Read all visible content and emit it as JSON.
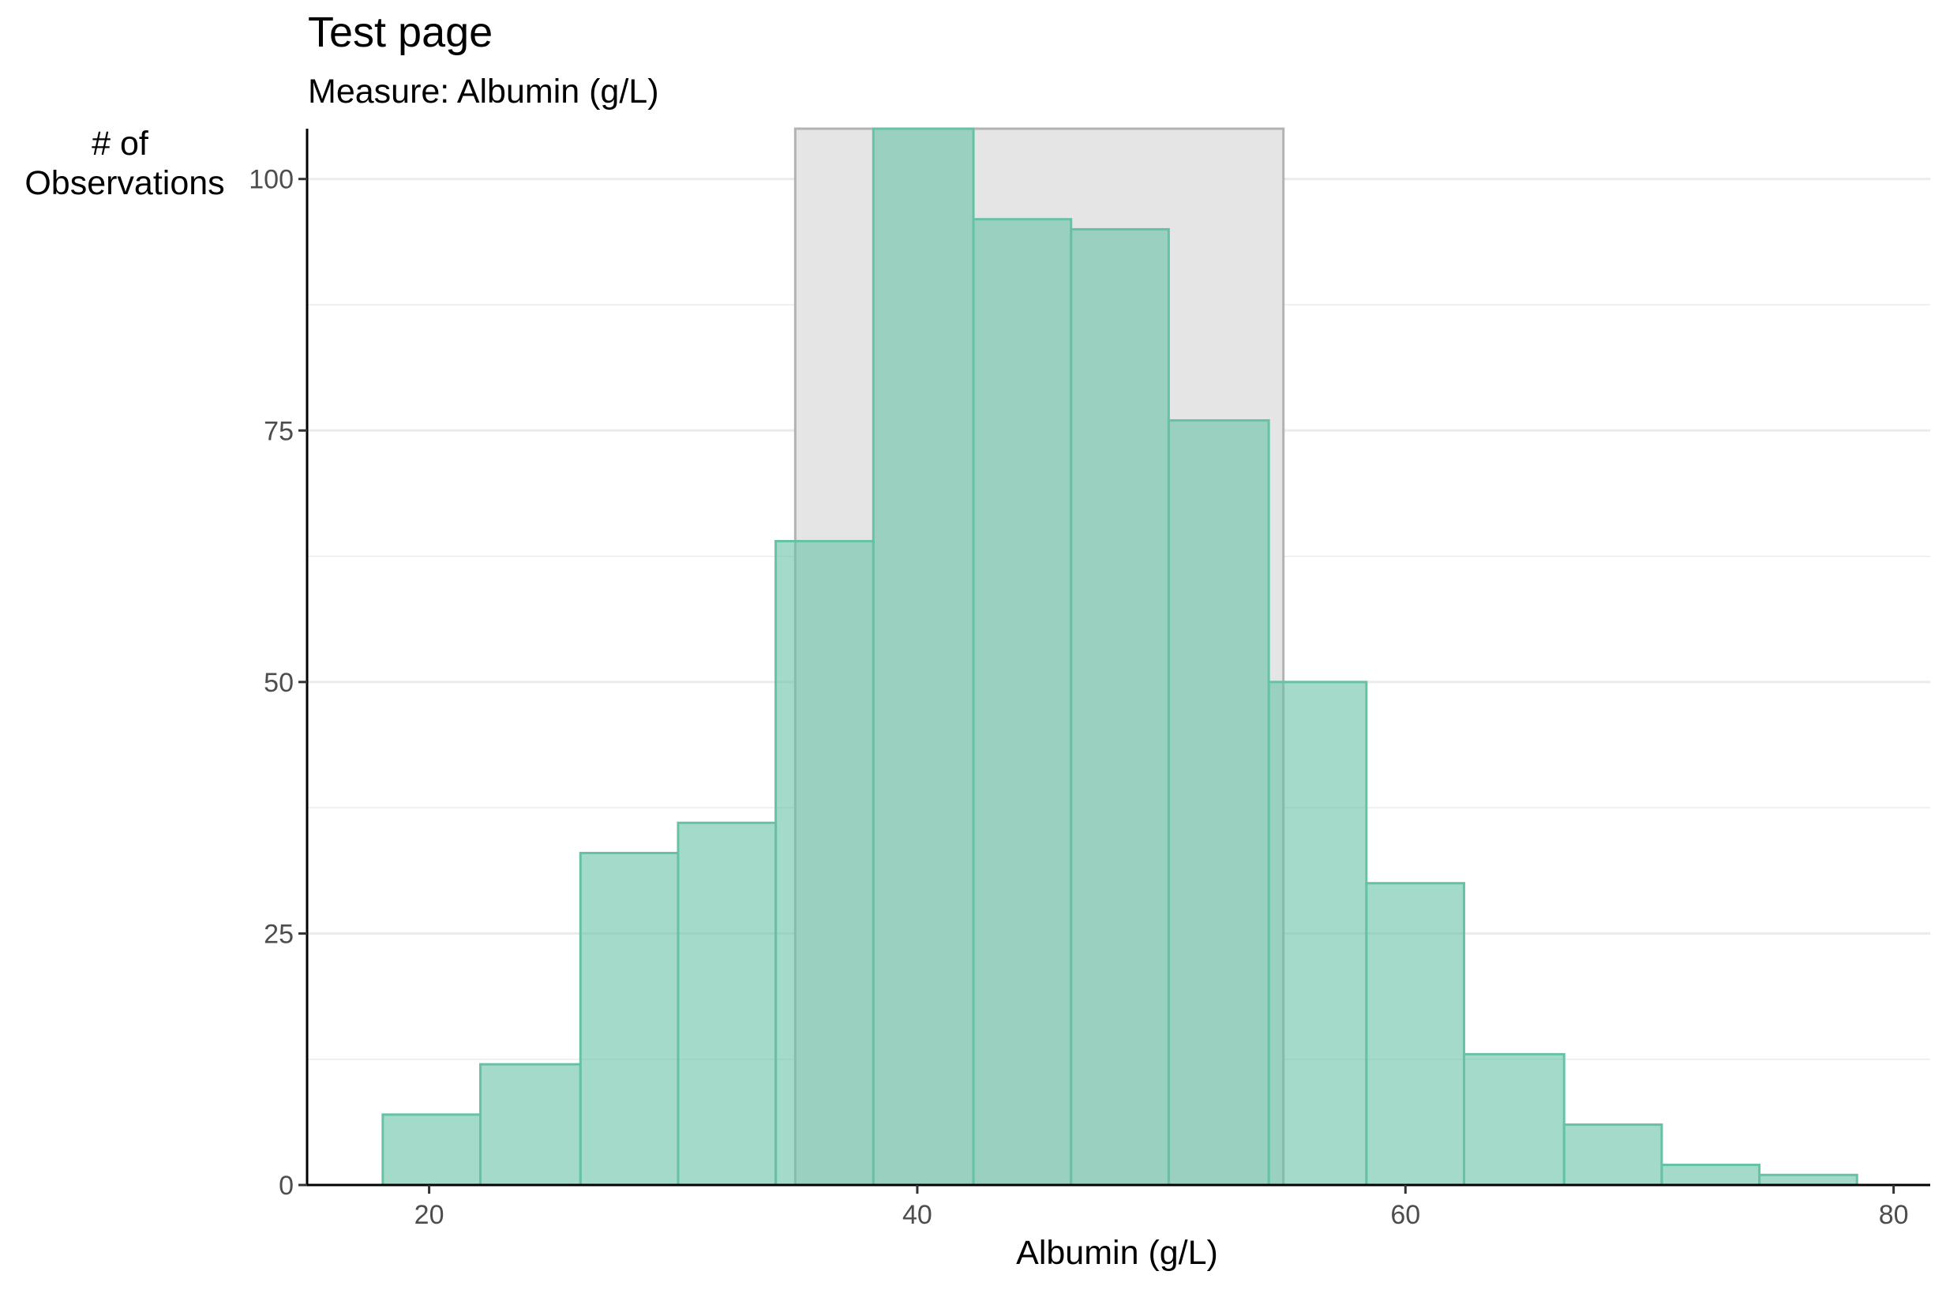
{
  "chart_data": {
    "type": "bar",
    "title": "Test page",
    "subtitle": "Measure: Albumin (g/L)",
    "ylabel_lines": [
      "# of",
      "Observations"
    ],
    "xlabel": "Albumin (g/L)",
    "xlim": [
      15,
      81.5
    ],
    "ylim": [
      0,
      105
    ],
    "x_ticks": [
      20,
      40,
      60,
      80
    ],
    "y_ticks": [
      0,
      25,
      50,
      75,
      100
    ],
    "y_minor_gridlines": [
      12.5,
      37.5,
      62.5,
      87.5
    ],
    "grid": "horizontal",
    "reference_range": {
      "x_min": 35,
      "x_max": 55
    },
    "bins": [
      {
        "x0": 18.1,
        "x1": 22.1,
        "count": 7
      },
      {
        "x0": 22.1,
        "x1": 26.2,
        "count": 12
      },
      {
        "x0": 26.2,
        "x1": 30.2,
        "count": 33
      },
      {
        "x0": 30.2,
        "x1": 34.2,
        "count": 36
      },
      {
        "x0": 34.2,
        "x1": 38.2,
        "count": 64
      },
      {
        "x0": 38.2,
        "x1": 42.3,
        "count": 105
      },
      {
        "x0": 42.3,
        "x1": 46.3,
        "count": 96
      },
      {
        "x0": 46.3,
        "x1": 50.3,
        "count": 95
      },
      {
        "x0": 50.3,
        "x1": 54.4,
        "count": 76
      },
      {
        "x0": 54.4,
        "x1": 58.4,
        "count": 50
      },
      {
        "x0": 58.4,
        "x1": 62.4,
        "count": 30
      },
      {
        "x0": 62.4,
        "x1": 66.5,
        "count": 13
      },
      {
        "x0": 66.5,
        "x1": 70.5,
        "count": 6
      },
      {
        "x0": 70.5,
        "x1": 74.5,
        "count": 2
      },
      {
        "x0": 74.5,
        "x1": 78.5,
        "count": 1
      }
    ],
    "colors": {
      "bar_fill": "#66c2a5",
      "bar_stroke": "#66c2a5",
      "reference_fill": "#e5e5e5",
      "reference_stroke": "#b3b3b3",
      "grid": "#ebebeb",
      "axis": "#000000"
    }
  }
}
